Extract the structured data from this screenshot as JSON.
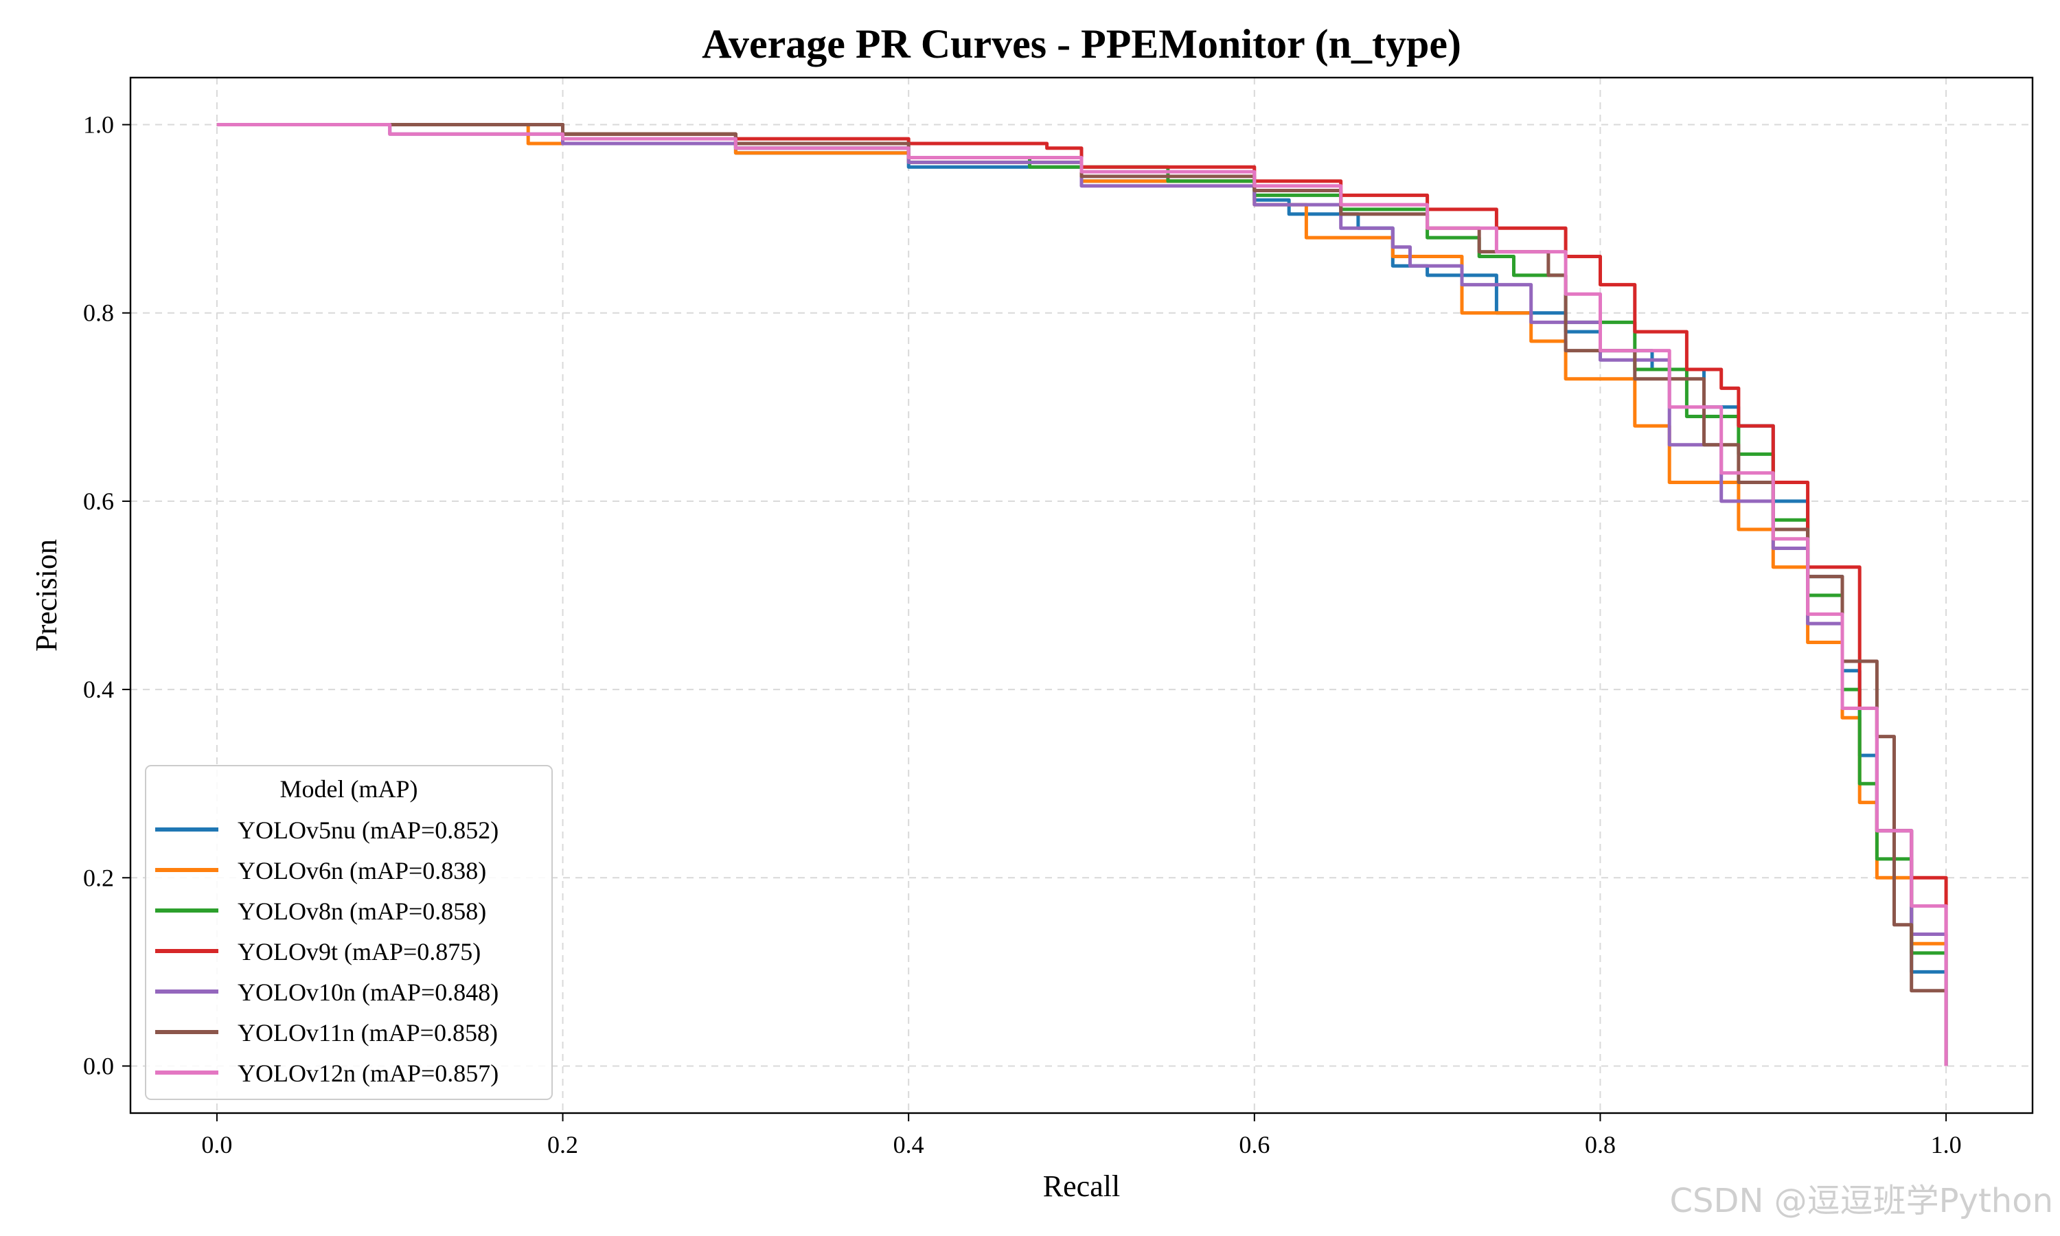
{
  "chart_data": {
    "type": "line",
    "title": "Average PR Curves - PPEMonitor (n_type)",
    "xlabel": "Recall",
    "ylabel": "Precision",
    "xlim": [
      -0.05,
      1.05
    ],
    "ylim": [
      -0.05,
      1.05
    ],
    "xticks": [
      0.0,
      0.2,
      0.4,
      0.6,
      0.8,
      1.0
    ],
    "yticks": [
      0.0,
      0.2,
      0.4,
      0.6,
      0.8,
      1.0
    ],
    "tick_labels_x": [
      "0.0",
      "0.2",
      "0.4",
      "0.6",
      "0.8",
      "1.0"
    ],
    "tick_labels_y": [
      "0.0",
      "0.2",
      "0.4",
      "0.6",
      "0.8",
      "1.0"
    ],
    "grid": true,
    "legend": {
      "title": "Model (mAP)",
      "placement": "lower-left"
    },
    "series": [
      {
        "name": "YOLOv5nu (mAP=0.852)",
        "color": "#1f77b4",
        "points": [
          [
            0,
            1.0
          ],
          [
            0.17,
            1.0
          ],
          [
            0.2,
            0.99
          ],
          [
            0.3,
            0.97
          ],
          [
            0.4,
            0.955
          ],
          [
            0.5,
            0.94
          ],
          [
            0.6,
            0.92
          ],
          [
            0.62,
            0.905
          ],
          [
            0.66,
            0.89
          ],
          [
            0.68,
            0.85
          ],
          [
            0.7,
            0.84
          ],
          [
            0.74,
            0.8
          ],
          [
            0.78,
            0.78
          ],
          [
            0.8,
            0.76
          ],
          [
            0.83,
            0.74
          ],
          [
            0.86,
            0.7
          ],
          [
            0.88,
            0.68
          ],
          [
            0.9,
            0.6
          ],
          [
            0.92,
            0.52
          ],
          [
            0.94,
            0.42
          ],
          [
            0.95,
            0.33
          ],
          [
            0.96,
            0.25
          ],
          [
            0.98,
            0.1
          ],
          [
            1.0,
            0.0
          ]
        ]
      },
      {
        "name": "YOLOv6n (mAP=0.838)",
        "color": "#ff7f0e",
        "points": [
          [
            0,
            1.0
          ],
          [
            0.18,
            0.98
          ],
          [
            0.3,
            0.97
          ],
          [
            0.4,
            0.96
          ],
          [
            0.5,
            0.94
          ],
          [
            0.6,
            0.915
          ],
          [
            0.63,
            0.88
          ],
          [
            0.68,
            0.86
          ],
          [
            0.72,
            0.8
          ],
          [
            0.76,
            0.77
          ],
          [
            0.78,
            0.73
          ],
          [
            0.82,
            0.68
          ],
          [
            0.84,
            0.62
          ],
          [
            0.88,
            0.57
          ],
          [
            0.9,
            0.53
          ],
          [
            0.92,
            0.45
          ],
          [
            0.94,
            0.37
          ],
          [
            0.95,
            0.28
          ],
          [
            0.96,
            0.2
          ],
          [
            0.98,
            0.13
          ],
          [
            1.0,
            0.08
          ]
        ]
      },
      {
        "name": "YOLOv8n (mAP=0.858)",
        "color": "#2ca02c",
        "points": [
          [
            0,
            1.0
          ],
          [
            0.2,
            0.99
          ],
          [
            0.3,
            0.975
          ],
          [
            0.4,
            0.965
          ],
          [
            0.47,
            0.955
          ],
          [
            0.55,
            0.94
          ],
          [
            0.6,
            0.925
          ],
          [
            0.65,
            0.91
          ],
          [
            0.7,
            0.88
          ],
          [
            0.73,
            0.86
          ],
          [
            0.75,
            0.84
          ],
          [
            0.78,
            0.79
          ],
          [
            0.82,
            0.74
          ],
          [
            0.85,
            0.69
          ],
          [
            0.88,
            0.65
          ],
          [
            0.9,
            0.58
          ],
          [
            0.92,
            0.5
          ],
          [
            0.94,
            0.4
          ],
          [
            0.95,
            0.3
          ],
          [
            0.96,
            0.22
          ],
          [
            0.98,
            0.12
          ],
          [
            1.0,
            0.0
          ]
        ]
      },
      {
        "name": "YOLOv9t (mAP=0.875)",
        "color": "#d62728",
        "points": [
          [
            0,
            1.0
          ],
          [
            0.2,
            0.99
          ],
          [
            0.3,
            0.985
          ],
          [
            0.4,
            0.98
          ],
          [
            0.48,
            0.975
          ],
          [
            0.5,
            0.955
          ],
          [
            0.6,
            0.94
          ],
          [
            0.65,
            0.925
          ],
          [
            0.7,
            0.91
          ],
          [
            0.74,
            0.89
          ],
          [
            0.78,
            0.86
          ],
          [
            0.8,
            0.83
          ],
          [
            0.82,
            0.78
          ],
          [
            0.85,
            0.74
          ],
          [
            0.87,
            0.72
          ],
          [
            0.88,
            0.68
          ],
          [
            0.9,
            0.62
          ],
          [
            0.92,
            0.53
          ],
          [
            0.95,
            0.38
          ],
          [
            0.96,
            0.25
          ],
          [
            0.98,
            0.2
          ],
          [
            1.0,
            0.12
          ]
        ]
      },
      {
        "name": "YOLOv10n (mAP=0.848)",
        "color": "#9467bd",
        "points": [
          [
            0,
            1.0
          ],
          [
            0.1,
            0.99
          ],
          [
            0.2,
            0.98
          ],
          [
            0.3,
            0.975
          ],
          [
            0.4,
            0.96
          ],
          [
            0.5,
            0.935
          ],
          [
            0.6,
            0.915
          ],
          [
            0.65,
            0.89
          ],
          [
            0.68,
            0.87
          ],
          [
            0.69,
            0.85
          ],
          [
            0.72,
            0.83
          ],
          [
            0.76,
            0.79
          ],
          [
            0.8,
            0.75
          ],
          [
            0.84,
            0.66
          ],
          [
            0.87,
            0.6
          ],
          [
            0.9,
            0.55
          ],
          [
            0.92,
            0.47
          ],
          [
            0.94,
            0.38
          ],
          [
            0.96,
            0.25
          ],
          [
            0.98,
            0.14
          ],
          [
            1.0,
            0.1
          ]
        ]
      },
      {
        "name": "YOLOv11n (mAP=0.858)",
        "color": "#8c564b",
        "points": [
          [
            0,
            1.0
          ],
          [
            0.14,
            1.0
          ],
          [
            0.2,
            0.99
          ],
          [
            0.3,
            0.98
          ],
          [
            0.4,
            0.965
          ],
          [
            0.5,
            0.945
          ],
          [
            0.6,
            0.93
          ],
          [
            0.65,
            0.905
          ],
          [
            0.7,
            0.89
          ],
          [
            0.73,
            0.865
          ],
          [
            0.77,
            0.84
          ],
          [
            0.78,
            0.76
          ],
          [
            0.82,
            0.73
          ],
          [
            0.86,
            0.66
          ],
          [
            0.88,
            0.62
          ],
          [
            0.9,
            0.57
          ],
          [
            0.92,
            0.52
          ],
          [
            0.94,
            0.43
          ],
          [
            0.96,
            0.35
          ],
          [
            0.97,
            0.15
          ],
          [
            0.98,
            0.08
          ],
          [
            1.0,
            0.0
          ]
        ]
      },
      {
        "name": "YOLOv12n (mAP=0.857)",
        "color": "#e377c2",
        "points": [
          [
            0,
            1.0
          ],
          [
            0.1,
            0.99
          ],
          [
            0.2,
            0.985
          ],
          [
            0.3,
            0.975
          ],
          [
            0.4,
            0.965
          ],
          [
            0.5,
            0.95
          ],
          [
            0.6,
            0.935
          ],
          [
            0.65,
            0.915
          ],
          [
            0.7,
            0.89
          ],
          [
            0.74,
            0.865
          ],
          [
            0.78,
            0.82
          ],
          [
            0.8,
            0.76
          ],
          [
            0.84,
            0.7
          ],
          [
            0.87,
            0.63
          ],
          [
            0.9,
            0.56
          ],
          [
            0.92,
            0.48
          ],
          [
            0.94,
            0.38
          ],
          [
            0.96,
            0.25
          ],
          [
            0.98,
            0.17
          ],
          [
            1.0,
            0.0
          ]
        ]
      }
    ]
  },
  "watermark": "CSDN @逗逗班学Python"
}
